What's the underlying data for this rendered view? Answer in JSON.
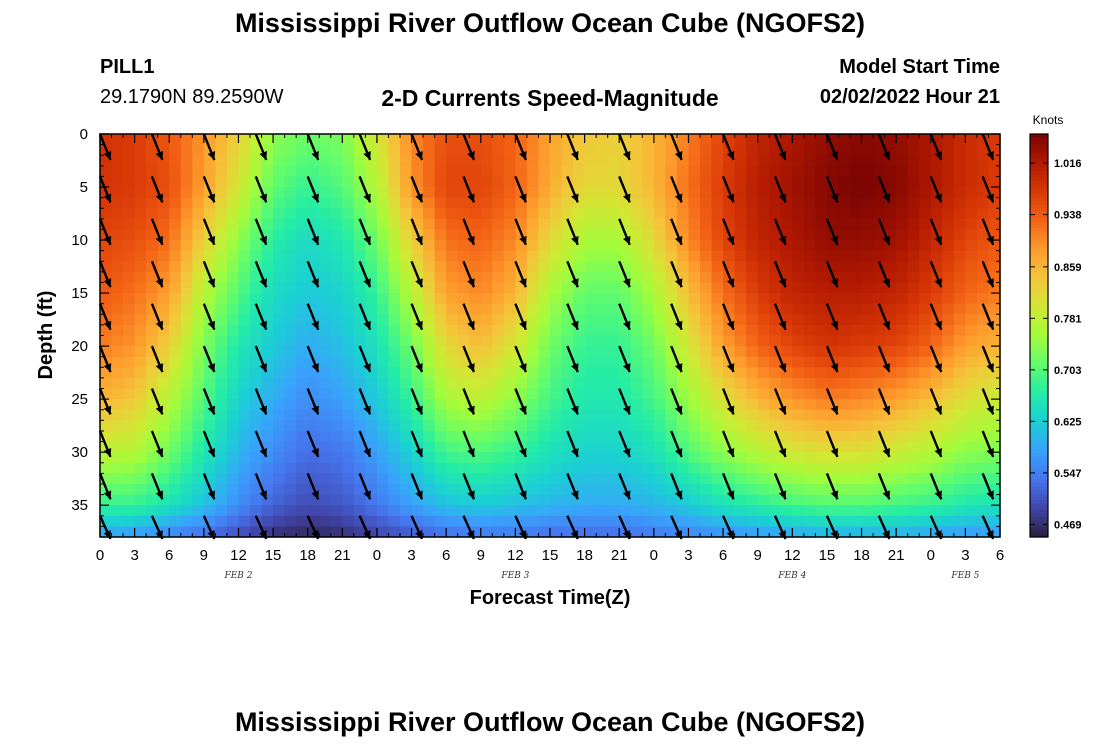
{
  "header": {
    "title": "Mississippi River Outflow Ocean Cube (NGOFS2)",
    "station_id": "PILL1",
    "coordinates": "29.1790N  89.2590W",
    "model_start_label": "Model Start Time",
    "model_start_value": "02/02/2022 Hour 21"
  },
  "footer": {
    "title": "Mississippi River Outflow Ocean Cube (NGOFS2)"
  },
  "chart_data": {
    "type": "heatmap",
    "title": "2-D Currents Speed-Magnitude",
    "xlabel": "Forecast Time(Z)",
    "ylabel": "Depth (ft)",
    "x_unit": "hours after 02/02 00Z",
    "xlim": [
      0,
      78
    ],
    "ylim": [
      0,
      38
    ],
    "y_inverted": true,
    "x_ticks": [
      0,
      3,
      6,
      9,
      12,
      15,
      18,
      21,
      24,
      27,
      30,
      33,
      36,
      39,
      42,
      45,
      48,
      51,
      54,
      57,
      60,
      63,
      66,
      69,
      72,
      75,
      78
    ],
    "x_tick_labels": [
      "0",
      "3",
      "6",
      "9",
      "12",
      "15",
      "18",
      "21",
      "0",
      "3",
      "6",
      "9",
      "12",
      "15",
      "18",
      "21",
      "0",
      "3",
      "6",
      "9",
      "12",
      "15",
      "18",
      "21",
      "0",
      "3",
      "6"
    ],
    "y_ticks": [
      0,
      5,
      10,
      15,
      20,
      25,
      30,
      35
    ],
    "y_tick_labels": [
      "0",
      "5",
      "10",
      "15",
      "20",
      "25",
      "30",
      "35"
    ],
    "day_labels": [
      {
        "x": 12,
        "label": "FEB 2"
      },
      {
        "x": 36,
        "label": "FEB 3"
      },
      {
        "x": 60,
        "label": "FEB 4"
      },
      {
        "x": 75,
        "label": "FEB 5"
      }
    ],
    "colorbar": {
      "label": "Knots",
      "min": 0.45,
      "max": 1.06,
      "ticks": [
        0.469,
        0.547,
        0.625,
        0.703,
        0.781,
        0.859,
        0.938,
        1.016
      ],
      "colors": [
        "#2d1e3e",
        "#4145ab",
        "#4675ed",
        "#39a2fc",
        "#1bcfd4",
        "#24eca6",
        "#61fc6c",
        "#a4fc3b",
        "#d1e834",
        "#f3c63a",
        "#fe9b2d",
        "#f36315",
        "#d93806",
        "#b11901",
        "#7a0403"
      ]
    },
    "speed_knots": {
      "x_hours": [
        0,
        3,
        6,
        9,
        12,
        15,
        18,
        21,
        24,
        27,
        30,
        33,
        36,
        39,
        42,
        45,
        48,
        51,
        54,
        57,
        60,
        63,
        66,
        69,
        72,
        75,
        78
      ],
      "depth_ft": [
        0,
        5,
        10,
        15,
        20,
        25,
        30,
        35,
        38
      ],
      "rows": [
        [
          0.98,
          0.97,
          0.94,
          0.89,
          0.83,
          0.74,
          0.72,
          0.73,
          0.8,
          0.9,
          0.95,
          0.95,
          0.93,
          0.88,
          0.84,
          0.83,
          0.86,
          0.91,
          0.96,
          1.0,
          1.02,
          1.04,
          1.05,
          1.04,
          1.02,
          0.99,
          0.97
        ],
        [
          0.98,
          0.97,
          0.95,
          0.88,
          0.8,
          0.71,
          0.68,
          0.7,
          0.77,
          0.89,
          0.96,
          0.96,
          0.93,
          0.87,
          0.82,
          0.82,
          0.86,
          0.92,
          0.97,
          1.01,
          1.03,
          1.05,
          1.06,
          1.05,
          1.02,
          0.99,
          0.97
        ],
        [
          0.96,
          0.95,
          0.92,
          0.83,
          0.74,
          0.67,
          0.64,
          0.66,
          0.72,
          0.83,
          0.92,
          0.93,
          0.9,
          0.82,
          0.76,
          0.76,
          0.82,
          0.9,
          0.96,
          1.0,
          1.02,
          1.04,
          1.04,
          1.03,
          1.0,
          0.96,
          0.94
        ],
        [
          0.94,
          0.92,
          0.88,
          0.77,
          0.7,
          0.64,
          0.62,
          0.63,
          0.68,
          0.77,
          0.88,
          0.9,
          0.86,
          0.76,
          0.71,
          0.71,
          0.76,
          0.85,
          0.92,
          0.97,
          1.0,
          1.01,
          1.01,
          1.0,
          0.97,
          0.93,
          0.91
        ],
        [
          0.91,
          0.89,
          0.83,
          0.73,
          0.66,
          0.62,
          0.59,
          0.61,
          0.65,
          0.72,
          0.82,
          0.85,
          0.8,
          0.72,
          0.68,
          0.68,
          0.72,
          0.8,
          0.88,
          0.93,
          0.96,
          0.98,
          0.97,
          0.96,
          0.93,
          0.88,
          0.86
        ],
        [
          0.86,
          0.84,
          0.77,
          0.7,
          0.63,
          0.59,
          0.56,
          0.58,
          0.62,
          0.68,
          0.76,
          0.78,
          0.74,
          0.69,
          0.66,
          0.66,
          0.69,
          0.75,
          0.81,
          0.86,
          0.89,
          0.91,
          0.9,
          0.88,
          0.85,
          0.81,
          0.79
        ],
        [
          0.78,
          0.77,
          0.72,
          0.66,
          0.6,
          0.56,
          0.53,
          0.54,
          0.58,
          0.63,
          0.69,
          0.7,
          0.68,
          0.65,
          0.63,
          0.63,
          0.65,
          0.7,
          0.74,
          0.77,
          0.8,
          0.81,
          0.81,
          0.79,
          0.77,
          0.74,
          0.73
        ],
        [
          0.68,
          0.68,
          0.65,
          0.61,
          0.56,
          0.52,
          0.5,
          0.51,
          0.54,
          0.58,
          0.61,
          0.62,
          0.61,
          0.6,
          0.59,
          0.59,
          0.6,
          0.62,
          0.65,
          0.67,
          0.69,
          0.7,
          0.7,
          0.69,
          0.68,
          0.66,
          0.65
        ],
        [
          0.58,
          0.57,
          0.55,
          0.53,
          0.5,
          0.47,
          0.46,
          0.47,
          0.49,
          0.51,
          0.53,
          0.54,
          0.54,
          0.53,
          0.53,
          0.53,
          0.54,
          0.55,
          0.56,
          0.57,
          0.58,
          0.59,
          0.59,
          0.59,
          0.58,
          0.57,
          0.57
        ]
      ]
    },
    "vectors": {
      "direction_deg": 158,
      "direction_convention": "degrees clockwise from north, toward",
      "x_hours": [
        0,
        4.5,
        9,
        13.5,
        18,
        22.5,
        27,
        31.5,
        36,
        40.5,
        45,
        49.5,
        54,
        58.5,
        63,
        67.5,
        72,
        76.5
      ],
      "depth_ft": [
        0,
        4,
        8,
        12,
        16,
        20,
        24,
        28,
        32,
        36
      ]
    }
  }
}
